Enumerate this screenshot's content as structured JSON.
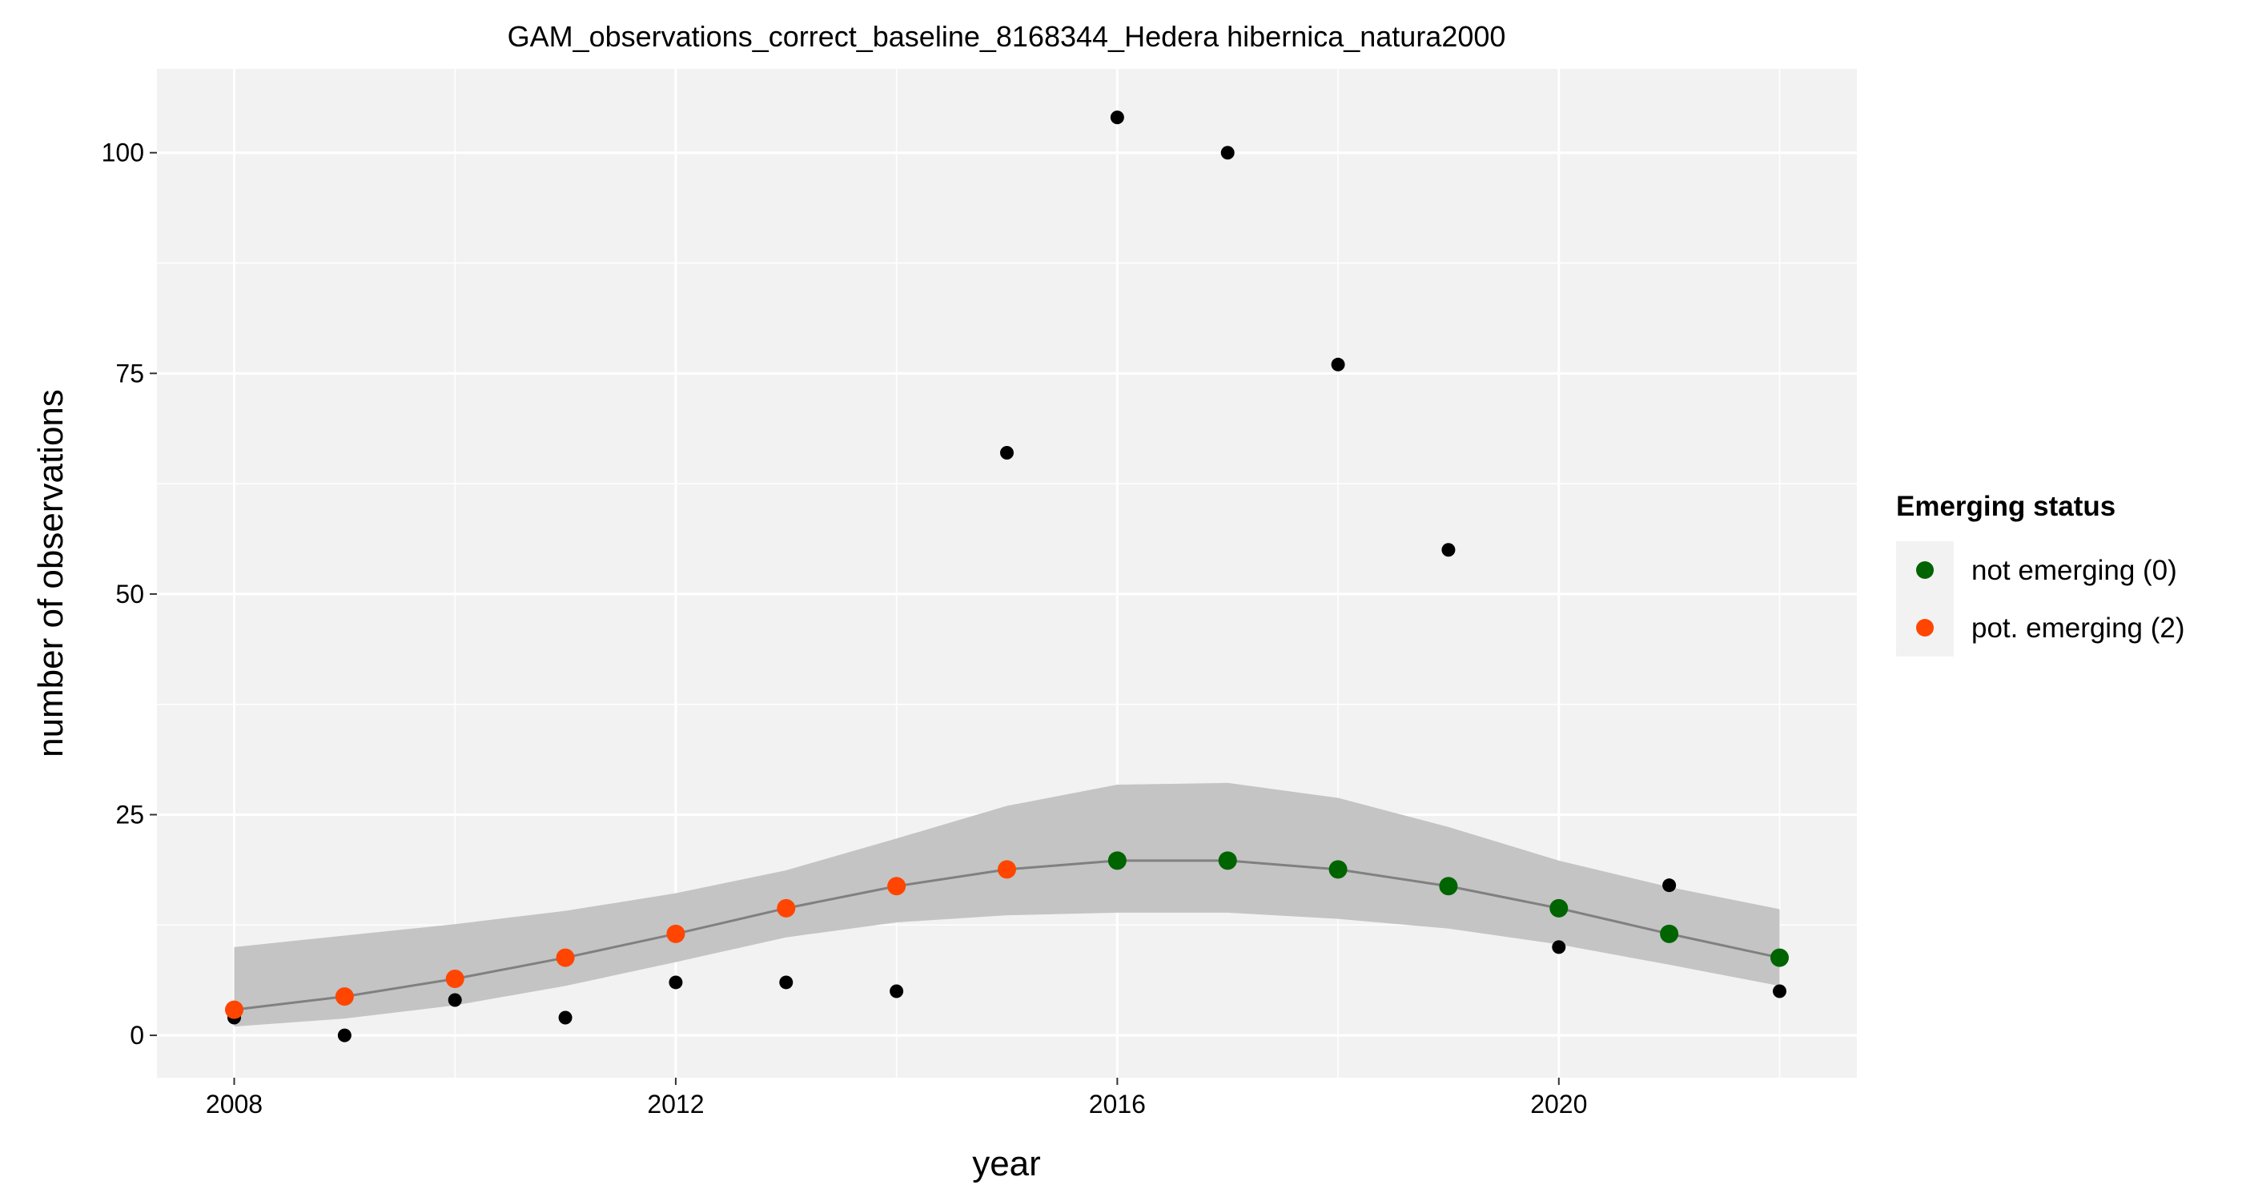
{
  "chart_data": {
    "type": "scatter",
    "title": "GAM_observations_correct_baseline_8168344_Hedera hibernica_natura2000",
    "xlabel": "year",
    "ylabel": "number of observations",
    "xlim": [
      2007.3,
      2022.7
    ],
    "ylim": [
      -4.8,
      109.5
    ],
    "x_ticks": [
      2008,
      2012,
      2016,
      2020
    ],
    "y_ticks": [
      0,
      25,
      50,
      75,
      100
    ],
    "grid": true,
    "legend_position": "right",
    "legend": {
      "title": "Emerging status",
      "entries": [
        {
          "label": "not emerging (0)",
          "color": "#006400"
        },
        {
          "label": "pot. emerging (2)",
          "color": "#FF4500"
        }
      ]
    },
    "observations": {
      "x": [
        2008,
        2009,
        2010,
        2011,
        2012,
        2013,
        2014,
        2015,
        2016,
        2017,
        2018,
        2019,
        2020,
        2021,
        2022
      ],
      "y": [
        2,
        0,
        4,
        2,
        6,
        6,
        5,
        66,
        104,
        100,
        76,
        55,
        10,
        17,
        5
      ]
    },
    "fit": {
      "x": [
        2008,
        2009,
        2010,
        2011,
        2012,
        2013,
        2014,
        2015,
        2016,
        2017,
        2018,
        2019,
        2020,
        2021,
        2022
      ],
      "y": [
        2.9,
        4.4,
        6.4,
        8.8,
        11.5,
        14.4,
        16.9,
        18.8,
        19.8,
        19.8,
        18.8,
        16.9,
        14.4,
        11.5,
        8.8
      ],
      "lower": [
        1.0,
        1.9,
        3.4,
        5.6,
        8.3,
        11.1,
        12.8,
        13.6,
        13.9,
        13.9,
        13.2,
        12.1,
        10.3,
        8.0,
        5.6
      ],
      "upper": [
        10.0,
        11.3,
        12.6,
        14.1,
        16.1,
        18.7,
        22.3,
        26.0,
        28.4,
        28.6,
        26.9,
        23.6,
        19.8,
        16.8,
        14.3
      ],
      "status": [
        2,
        2,
        2,
        2,
        2,
        2,
        2,
        2,
        0,
        0,
        0,
        0,
        0,
        0,
        0
      ]
    },
    "colors": {
      "panel": "#F2F2F2",
      "grid": "#FFFFFF",
      "ribbon": "#C4C4C4",
      "fit_line": "#808080",
      "observation": "#000000",
      "not_emerging": "#006400",
      "pot_emerging": "#FF4500"
    }
  }
}
